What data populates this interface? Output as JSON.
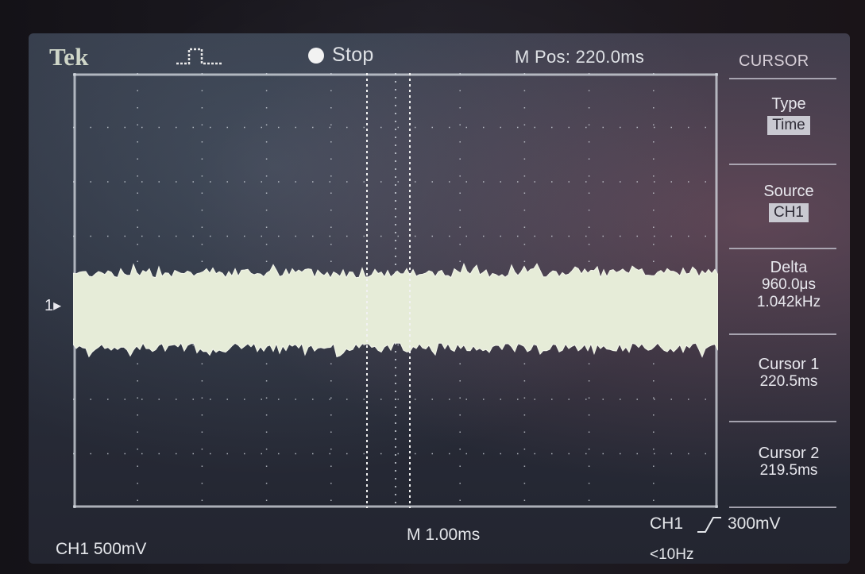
{
  "header": {
    "brand": "Tek",
    "run_status": "Stop",
    "horizontal_position": "M Pos: 220.0ms",
    "menu_title": "CURSOR"
  },
  "side_menu": {
    "type": {
      "label": "Type",
      "value": "Time"
    },
    "source": {
      "label": "Source",
      "value": "CH1"
    },
    "delta": {
      "label": "Delta",
      "time": "960.0μs",
      "frequency": "1.042kHz"
    },
    "cursor1": {
      "label": "Cursor 1",
      "value": "220.5ms"
    },
    "cursor2": {
      "label": "Cursor 2",
      "value": "219.5ms"
    }
  },
  "footer": {
    "ch1_scale": "CH1  500mV",
    "time_scale": "M 1.00ms",
    "trigger_source": "CH1",
    "trigger_slope_icon": "rising-edge-icon",
    "trigger_level": "300mV",
    "trigger_frequency": "<10Hz"
  },
  "graticule": {
    "ground_marker": "1",
    "divisions_x": 10,
    "divisions_y": 8
  },
  "colors": {
    "trace": "#e6ecd8",
    "grid": "#d8dde4",
    "text": "#e4e6ea",
    "chip_bg": "#c9c9d1"
  }
}
